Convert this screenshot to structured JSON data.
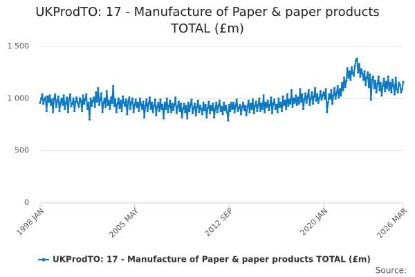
{
  "chart_data": {
    "type": "line",
    "title": "UKProdTO: 17 - Manufacture of Paper & paper products TOTAL (£m)",
    "source": "Source:",
    "categories": [
      "1998 JAN",
      null,
      null,
      null,
      null,
      null,
      null,
      null,
      null,
      null,
      null,
      null,
      null,
      null,
      null,
      null,
      null,
      null,
      null,
      null,
      null,
      null,
      null,
      null,
      null,
      null,
      null,
      null,
      null,
      null,
      null,
      null,
      null,
      null,
      null,
      null,
      null,
      null,
      null,
      null,
      null,
      null,
      null,
      null,
      null,
      null,
      null,
      null,
      null,
      null,
      null,
      null,
      null,
      null,
      null,
      null,
      null,
      null,
      null,
      null,
      null,
      null,
      null,
      null,
      null,
      null,
      null,
      null,
      null,
      null,
      null,
      null,
      null,
      null,
      null,
      null,
      null,
      null,
      null,
      null,
      null,
      null,
      null,
      null,
      null,
      null,
      null,
      null,
      "2005 MAY",
      null,
      null,
      null,
      null,
      null,
      null,
      null,
      null,
      null,
      null,
      null,
      null,
      null,
      null,
      null,
      null,
      null,
      null,
      null,
      null,
      null,
      null,
      null,
      null,
      null,
      null,
      null,
      null,
      null,
      null,
      null,
      null,
      null,
      null,
      null,
      null,
      null,
      null,
      null,
      null,
      null,
      null,
      null,
      null,
      null,
      null,
      null,
      null,
      null,
      null,
      null,
      null,
      null,
      null,
      null,
      null,
      null,
      null,
      null,
      null,
      null,
      null,
      null,
      null,
      null,
      null,
      null,
      null,
      null,
      null,
      null,
      null,
      null,
      null,
      null,
      null,
      null,
      null,
      null,
      null,
      null,
      null,
      null,
      null,
      null,
      null,
      null,
      "2012 SEP",
      null,
      null,
      null,
      null,
      null,
      null,
      null,
      null,
      null,
      null,
      null,
      null,
      null,
      null,
      null,
      null,
      null,
      null,
      null,
      null,
      null,
      null,
      null,
      null,
      null,
      null,
      null,
      null,
      null,
      null,
      null,
      null,
      null,
      null,
      null,
      null,
      null,
      null,
      null,
      null,
      null,
      null,
      null,
      null,
      null,
      null,
      null,
      null,
      null,
      null,
      null,
      null,
      null,
      null,
      null,
      null,
      null,
      null,
      null,
      null,
      null,
      null,
      null,
      null,
      null,
      null,
      null,
      null,
      null,
      null,
      null,
      null,
      null,
      null,
      null,
      null,
      null,
      null,
      null,
      null,
      null,
      null,
      null,
      null,
      null,
      null,
      null,
      "2020 JAN",
      null,
      null,
      null,
      null,
      null,
      null,
      null,
      null,
      null,
      null,
      null,
      null,
      null,
      null,
      null,
      null,
      null,
      null,
      null,
      null,
      null,
      null,
      null,
      null,
      null,
      null,
      null,
      null,
      null,
      null,
      null,
      null,
      null,
      null,
      null,
      null,
      null,
      null,
      null,
      null,
      null,
      null,
      null,
      null,
      null,
      null,
      null,
      null,
      null,
      null,
      null,
      null,
      null,
      null,
      null,
      null,
      null,
      null,
      null,
      null,
      null,
      null,
      null,
      null,
      null,
      null,
      null,
      null,
      null,
      null,
      null,
      null,
      null,
      "2026 MAR"
    ],
    "series": [
      {
        "name": "UKProdTO: 17 - Manufacture of Paper & paper products TOTAL (£m)",
        "color": "#0a78c2",
        "values": [
          960,
          1000,
          1040,
          950,
          990,
          1010,
          880,
          1020,
          970,
          1030,
          940,
          990,
          870,
          1000,
          1040,
          920,
          980,
          1020,
          880,
          960,
          1000,
          940,
          1030,
          900,
          960,
          1010,
          870,
          990,
          1040,
          930,
          950,
          1000,
          880,
          970,
          1010,
          960,
          920,
          1000,
          980,
          880,
          1030,
          950,
          990,
          1040,
          900,
          960,
          800,
          1000,
          930,
          980,
          1010,
          920,
          1060,
          970,
          1100,
          940,
          990,
          1050,
          870,
          960,
          1000,
          920,
          1070,
          940,
          980,
          900,
          1010,
          960,
          1120,
          930,
          990,
          870,
          950,
          1000,
          910,
          980,
          880,
          1020,
          960,
          930,
          990,
          850,
          970,
          1010,
          900,
          960,
          1000,
          870,
          940,
          990,
          920,
          960,
          880,
          1000,
          940,
          900,
          970,
          820,
          930,
          990,
          880,
          950,
          1010,
          900,
          960,
          870,
          930,
          990,
          840,
          920,
          960,
          880,
          990,
          900,
          940,
          810,
          960,
          900,
          1000,
          870,
          930,
          980,
          870,
          950,
          890,
          940,
          1010,
          860,
          920,
          970,
          880,
          950,
          820,
          900,
          950,
          870,
          930,
          810,
          960,
          880,
          940,
          990,
          860,
          910,
          950,
          840,
          920,
          980,
          870,
          930,
          900,
          850,
          960,
          890,
          940,
          820,
          910,
          970,
          860,
          930,
          890,
          950,
          820,
          900,
          960,
          870,
          930,
          980,
          880,
          920,
          850,
          960,
          890,
          930,
          870,
          790,
          940,
          880,
          960,
          900,
          960,
          870,
          930,
          990,
          880,
          910,
          940,
          850,
          920,
          960,
          890,
          930,
          840,
          920,
          980,
          870,
          950,
          900,
          990,
          860,
          930,
          970,
          880,
          940,
          1000,
          880,
          950,
          900,
          1030,
          870,
          960,
          920,
          980,
          890,
          940,
          1010,
          860,
          950,
          990,
          900,
          940,
          870,
          1000,
          920,
          960,
          880,
          1020,
          940,
          980,
          900,
          1040,
          930,
          990,
          950,
          1080,
          920,
          1000,
          960,
          1030,
          940,
          1010,
          950,
          1090,
          970,
          1040,
          900,
          990,
          1050,
          960,
          1020,
          1080,
          940,
          1000,
          1060,
          950,
          1020,
          1100,
          980,
          1040,
          960,
          1010,
          1070,
          990,
          1030,
          1060,
          1000,
          1090,
          870,
          960,
          1040,
          1000,
          1080,
          950,
          1030,
          1100,
          1000,
          1050,
          1120,
          1010,
          1090,
          1030,
          1150,
          1080,
          1200,
          1110,
          1170,
          1290,
          1200,
          1260,
          1180,
          1300,
          1240,
          1220,
          1310,
          1370,
          1380,
          1250,
          1330,
          1210,
          1280,
          1240,
          1180,
          1260,
          1130,
          1200,
          1250,
          1110,
          1230,
          990,
          1180,
          1210,
          1100,
          1170,
          1060,
          1140,
          1210,
          1080,
          1150,
          1030,
          1120,
          1190,
          1070,
          1160,
          1100,
          1210,
          1080,
          1150,
          1060,
          1180,
          1120,
          1040,
          1200,
          1090,
          1060,
          1150,
          1130,
          1060,
          1090,
          1160
        ]
      }
    ],
    "ylim": [
      0,
      1500
    ],
    "yticks": [
      0,
      500,
      {
        "value": 1000,
        "label": "1 000"
      },
      {
        "value": 1500,
        "label": "1 500"
      }
    ],
    "grid": true
  }
}
